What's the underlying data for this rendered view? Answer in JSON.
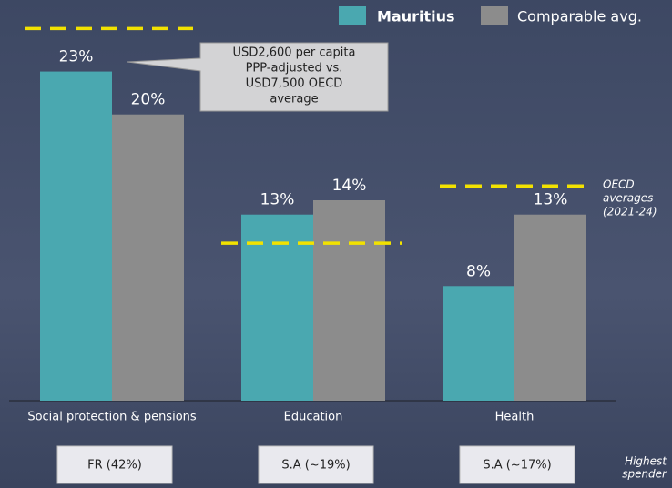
{
  "chart_data": {
    "type": "bar",
    "categories": [
      "Social protection & pensions",
      "Education",
      "Health"
    ],
    "series": [
      {
        "name": "Mauritius",
        "color": "#4aa8b0",
        "values": [
          23,
          13,
          8
        ],
        "value_labels": [
          "23%",
          "13%",
          "8%"
        ]
      },
      {
        "name": "Comparable avg.",
        "color": "#8c8c8c",
        "values": [
          20,
          14,
          13
        ],
        "value_labels": [
          "20%",
          "14%",
          "13%"
        ]
      }
    ],
    "reference": {
      "name_lines": [
        "OECD",
        "averages",
        "(2021-24)"
      ],
      "color": "#f2e200",
      "values": [
        26,
        11,
        15
      ]
    },
    "callout_lines": [
      "USD2,600 per capita",
      "PPP-adjusted vs.",
      "USD7,500 OECD",
      "average"
    ],
    "highest_spender": {
      "label_lines": [
        "Highest",
        "spender"
      ],
      "values": [
        "FR (42%)",
        "S.A (~19%)",
        "S.A (~17%)"
      ]
    },
    "ylim": [
      0,
      28
    ]
  }
}
